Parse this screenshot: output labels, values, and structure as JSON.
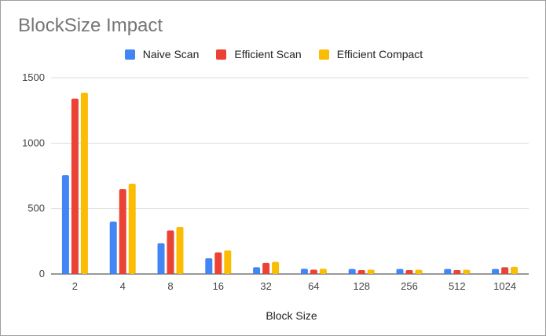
{
  "chart_data": {
    "type": "bar",
    "title": "BlockSize Impact",
    "xlabel": "Block Size",
    "ylabel": "",
    "categories": [
      "2",
      "4",
      "8",
      "16",
      "32",
      "64",
      "128",
      "256",
      "512",
      "1024"
    ],
    "series": [
      {
        "name": "Naive Scan",
        "color": "#4285f4",
        "values": [
          755,
          400,
          235,
          120,
          52,
          40,
          38,
          38,
          38,
          38
        ]
      },
      {
        "name": "Efficient Scan",
        "color": "#ea4335",
        "values": [
          1340,
          648,
          333,
          165,
          85,
          33,
          30,
          30,
          30,
          52
        ]
      },
      {
        "name": "Efficient Compact",
        "color": "#fbbc04",
        "values": [
          1385,
          690,
          360,
          180,
          92,
          40,
          33,
          32,
          32,
          55
        ]
      }
    ],
    "ylim": [
      0,
      1500
    ],
    "yticks": [
      "0",
      "500",
      "1000",
      "1500"
    ],
    "grid": true,
    "legend_position": "top"
  }
}
